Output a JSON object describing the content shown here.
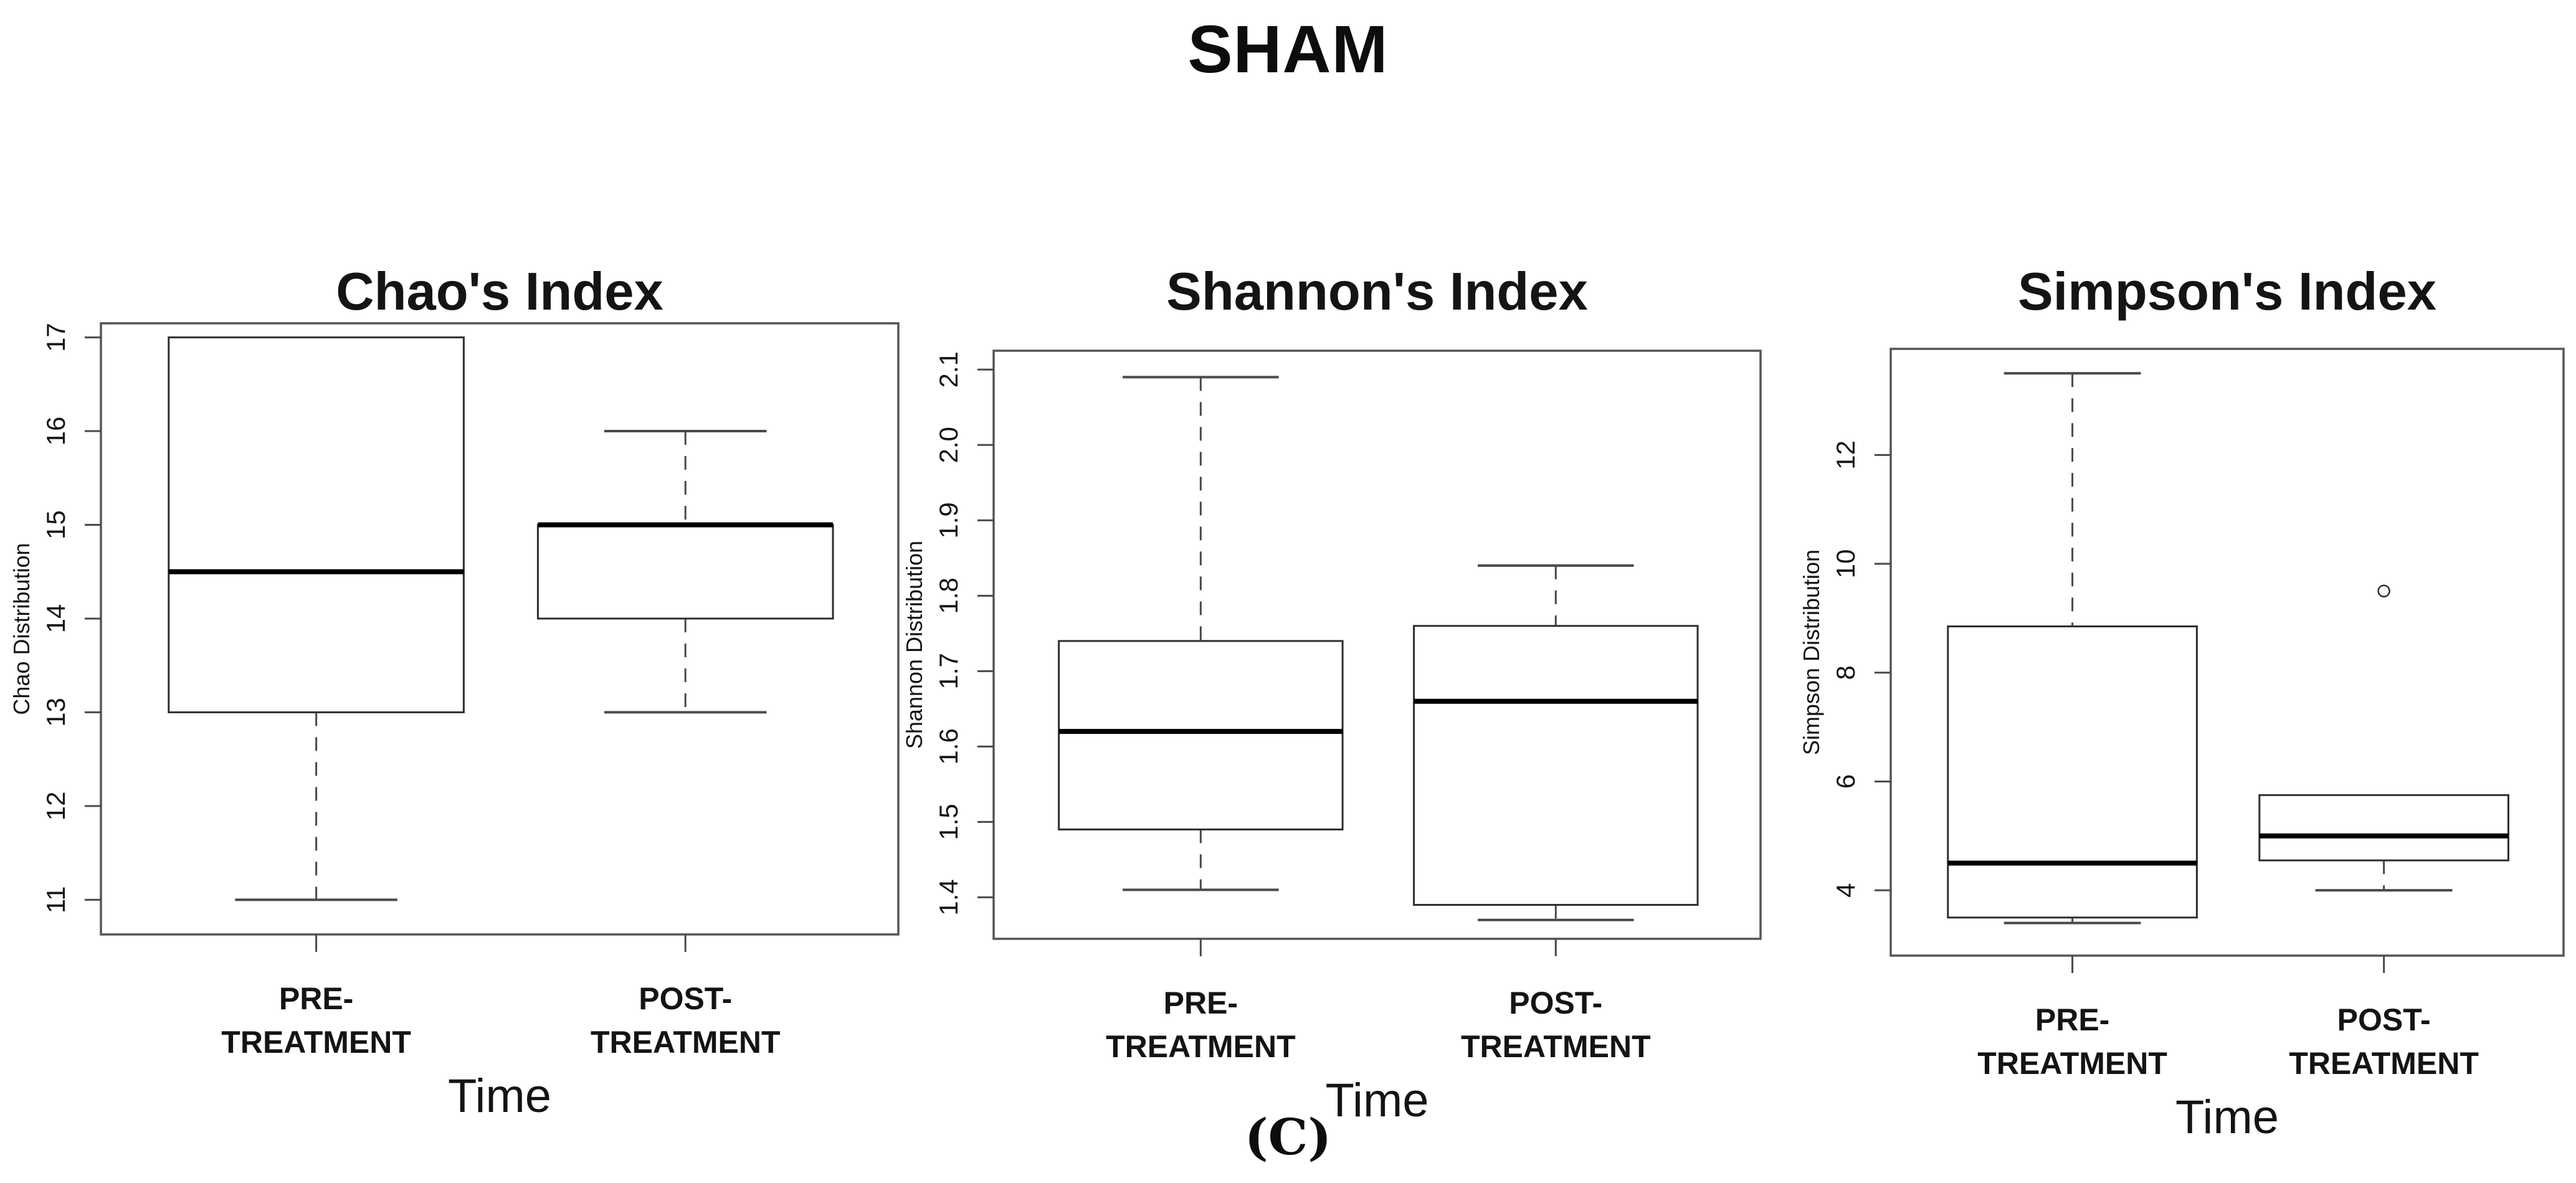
{
  "figure": {
    "title": "SHAM",
    "caption": "(C)"
  },
  "style": {
    "background": "#ffffff",
    "frame_color": "#555555",
    "line_color": "#4a4a4a",
    "box_line_color": "#2e2e2e",
    "median_color": "#000000",
    "text_color": "#141414"
  },
  "chart_data": [
    {
      "type": "boxplot",
      "title": "Chao's Index",
      "ylabel": "Chao Distribution",
      "xlabel": "Time",
      "categories": [
        [
          "PRE-",
          "TREATMENT"
        ],
        [
          "POST-",
          "TREATMENT"
        ]
      ],
      "ytick_labels": [
        "11",
        "12",
        "13",
        "14",
        "15",
        "16",
        "17"
      ],
      "ylim": [
        10.63,
        17.15
      ],
      "grid": false,
      "series": [
        {
          "label": "PRE-TREATMENT",
          "whisker_low": 11,
          "q1": 13,
          "median": 14.5,
          "q3": 17,
          "whisker_high": 17,
          "outliers": []
        },
        {
          "label": "POST-TREATMENT",
          "whisker_low": 13,
          "q1": 14,
          "median": 15,
          "q3": 15,
          "whisker_high": 16,
          "outliers": []
        }
      ]
    },
    {
      "type": "boxplot",
      "title": "Shannon's Index",
      "ylabel": "Shannon Distribution",
      "xlabel": "Time",
      "categories": [
        [
          "PRE-",
          "TREATMENT"
        ],
        [
          "POST-",
          "TREATMENT"
        ]
      ],
      "ytick_labels": [
        "1.4",
        "1.5",
        "1.6",
        "1.7",
        "1.8",
        "1.9",
        "2.0",
        "2.1"
      ],
      "ylim": [
        1.345,
        2.125
      ],
      "grid": false,
      "series": [
        {
          "label": "PRE-TREATMENT",
          "whisker_low": 1.41,
          "q1": 1.49,
          "median": 1.62,
          "q3": 1.74,
          "whisker_high": 2.09,
          "outliers": []
        },
        {
          "label": "POST-TREATMENT",
          "whisker_low": 1.37,
          "q1": 1.39,
          "median": 1.66,
          "q3": 1.76,
          "whisker_high": 1.84,
          "outliers": []
        }
      ]
    },
    {
      "type": "boxplot",
      "title": "Simpson's Index",
      "ylabel": "Simpson Distribution",
      "xlabel": "Time",
      "categories": [
        [
          "PRE-",
          "TREATMENT"
        ],
        [
          "POST-",
          "TREATMENT"
        ]
      ],
      "ytick_labels": [
        "4",
        "6",
        "8",
        "10",
        "12"
      ],
      "ylim": [
        2.8,
        13.95
      ],
      "grid": false,
      "series": [
        {
          "label": "PRE-TREATMENT",
          "whisker_low": 3.4,
          "q1": 3.5,
          "median": 4.5,
          "q3": 8.85,
          "whisker_high": 13.5,
          "outliers": []
        },
        {
          "label": "POST-TREATMENT",
          "whisker_low": 4.0,
          "q1": 4.55,
          "median": 5.0,
          "q3": 5.75,
          "whisker_high": 5.75,
          "outliers": [
            9.5
          ]
        }
      ]
    }
  ]
}
